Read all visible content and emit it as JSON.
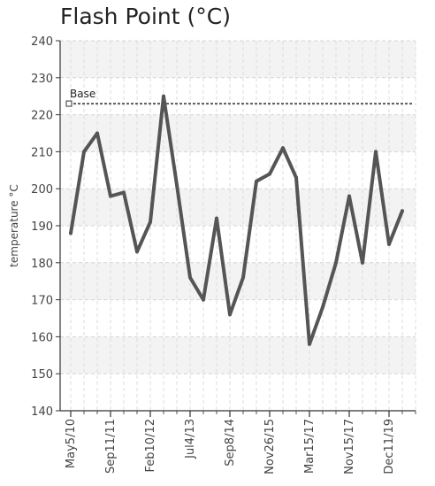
{
  "chart_data": {
    "type": "line",
    "title": "Flash Point (°C)",
    "ylabel": "temperature °C",
    "xlabel": "",
    "ylim": [
      140,
      240
    ],
    "yticks": [
      140,
      150,
      160,
      170,
      180,
      190,
      200,
      210,
      220,
      230,
      240
    ],
    "xtick_labels": [
      "May5/10",
      "Sep11/11",
      "Feb10/12",
      "Jul4/13",
      "Sep8/14",
      "Nov26/15",
      "Mar15/17",
      "Nov15/17",
      "Dec11/19"
    ],
    "grid": true,
    "series": [
      {
        "values": [
          188,
          210,
          215,
          198,
          199,
          183,
          191,
          225,
          201,
          176,
          170,
          192,
          166,
          176,
          202,
          204,
          211,
          203,
          158,
          168,
          180,
          198,
          180,
          210,
          185,
          194
        ],
        "color": "#555555"
      }
    ],
    "reference_line": {
      "label": "Base",
      "value": 223,
      "color": "#666666"
    }
  }
}
